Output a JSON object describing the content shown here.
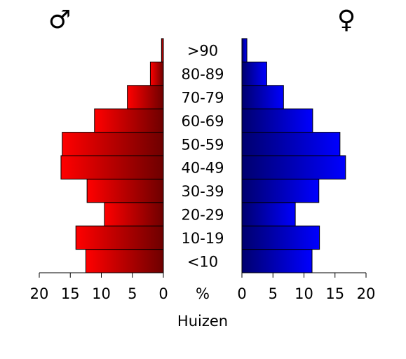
{
  "chart_data": {
    "type": "pyramid",
    "categories": [
      "<10",
      "10-19",
      "20-29",
      "30-39",
      "40-49",
      "50-59",
      "60-69",
      "70-79",
      "80-89",
      ">90"
    ],
    "series": [
      {
        "name": "♂",
        "side": "left",
        "gradient": [
          "#ff0000",
          "#6e0000"
        ],
        "values": [
          12.5,
          14.1,
          9.5,
          12.3,
          16.5,
          16.3,
          11.1,
          5.8,
          2.1,
          0.3
        ]
      },
      {
        "name": "♀",
        "side": "right",
        "gradient": [
          "#0000ff",
          "#00006e"
        ],
        "values": [
          11.3,
          12.5,
          8.6,
          12.4,
          16.7,
          15.8,
          11.4,
          6.7,
          4.0,
          0.8
        ]
      }
    ],
    "xlim": [
      0,
      20
    ],
    "xticks": [
      0,
      5,
      10,
      15,
      20
    ],
    "center_label": "%",
    "xlabel": "Huizen"
  }
}
